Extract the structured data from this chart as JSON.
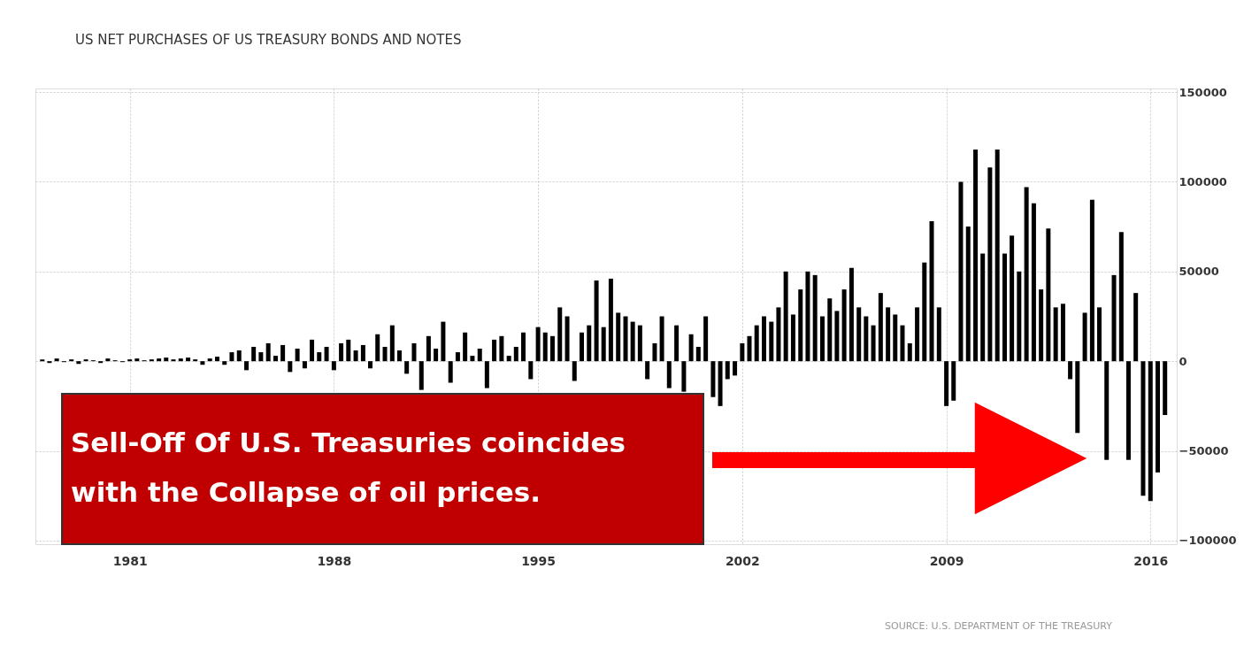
{
  "chart_data": {
    "type": "bar",
    "title": "US NET PURCHASES OF US TREASURY BONDS AND NOTES",
    "x": [
      "1978-01",
      "1978-04",
      "1978-07",
      "1978-10",
      "1979-01",
      "1979-04",
      "1979-07",
      "1979-10",
      "1980-01",
      "1980-04",
      "1980-07",
      "1980-10",
      "1981-01",
      "1981-04",
      "1981-07",
      "1981-10",
      "1982-01",
      "1982-04",
      "1982-07",
      "1982-10",
      "1983-01",
      "1983-04",
      "1983-07",
      "1983-10",
      "1984-01",
      "1984-04",
      "1984-07",
      "1984-10",
      "1985-01",
      "1985-04",
      "1985-07",
      "1985-10",
      "1986-01",
      "1986-04",
      "1986-07",
      "1986-10",
      "1987-01",
      "1987-04",
      "1987-07",
      "1987-10",
      "1988-01",
      "1988-04",
      "1988-07",
      "1988-10",
      "1989-01",
      "1989-04",
      "1989-07",
      "1989-10",
      "1990-01",
      "1990-04",
      "1990-07",
      "1990-10",
      "1991-01",
      "1991-04",
      "1991-07",
      "1991-10",
      "1992-01",
      "1992-04",
      "1992-07",
      "1992-10",
      "1993-01",
      "1993-04",
      "1993-07",
      "1993-10",
      "1994-01",
      "1994-04",
      "1994-07",
      "1994-10",
      "1995-01",
      "1995-04",
      "1995-07",
      "1995-10",
      "1996-01",
      "1996-04",
      "1996-07",
      "1996-10",
      "1997-01",
      "1997-04",
      "1997-07",
      "1997-10",
      "1998-01",
      "1998-04",
      "1998-07",
      "1998-10",
      "1999-01",
      "1999-04",
      "1999-07",
      "1999-10",
      "2000-01",
      "2000-04",
      "2000-07",
      "2000-10",
      "2001-01",
      "2001-04",
      "2001-07",
      "2001-10",
      "2002-01",
      "2002-04",
      "2002-07",
      "2002-10",
      "2003-01",
      "2003-04",
      "2003-07",
      "2003-10",
      "2004-01",
      "2004-04",
      "2004-07",
      "2004-10",
      "2005-01",
      "2005-04",
      "2005-07",
      "2005-10",
      "2006-01",
      "2006-04",
      "2006-07",
      "2006-10",
      "2007-01",
      "2007-04",
      "2007-07",
      "2007-10",
      "2008-01",
      "2008-04",
      "2008-07",
      "2008-10",
      "2009-01",
      "2009-04",
      "2009-07",
      "2009-10",
      "2010-01",
      "2010-04",
      "2010-07",
      "2010-10",
      "2011-01",
      "2011-04",
      "2011-07",
      "2011-10",
      "2012-01",
      "2012-04",
      "2012-07",
      "2012-10",
      "2013-01",
      "2013-04",
      "2013-07",
      "2013-10",
      "2014-01",
      "2014-04",
      "2014-07",
      "2014-10",
      "2015-01",
      "2015-04",
      "2015-07",
      "2015-10",
      "2016-01",
      "2016-04",
      "2016-07"
    ],
    "series": [
      {
        "color": "#000000",
        "values": [
          1000,
          -1000,
          1500,
          -500,
          1000,
          -1500,
          1000,
          500,
          -1000,
          1500,
          500,
          -500,
          1000,
          1500,
          500,
          1000,
          1500,
          2000,
          1000,
          1500,
          2000,
          1000,
          -2000,
          1500,
          2500,
          -2000,
          5000,
          6000,
          -5000,
          8000,
          5000,
          10000,
          3000,
          9000,
          -6000,
          7000,
          -4000,
          12000,
          5000,
          8000,
          -5000,
          10000,
          12000,
          6000,
          9000,
          -4000,
          15000,
          8000,
          20000,
          6000,
          -7000,
          10000,
          -16000,
          14000,
          7000,
          22000,
          -12000,
          5000,
          16000,
          3000,
          7000,
          -15000,
          12000,
          14000,
          3000,
          8000,
          16000,
          -10000,
          19000,
          16000,
          14000,
          30000,
          25000,
          -11000,
          16000,
          20000,
          45000,
          19000,
          46000,
          27000,
          25000,
          22000,
          20000,
          -10000,
          10000,
          25000,
          -15000,
          20000,
          -17000,
          15000,
          8000,
          25000,
          -20000,
          -25000,
          -10000,
          -8000,
          10000,
          14000,
          20000,
          25000,
          22000,
          30000,
          50000,
          26000,
          40000,
          50000,
          48000,
          25000,
          35000,
          28000,
          40000,
          52000,
          30000,
          25000,
          20000,
          38000,
          30000,
          26000,
          20000,
          10000,
          30000,
          55000,
          78000,
          30000,
          -25000,
          -22000,
          100000,
          75000,
          118000,
          60000,
          108000,
          118000,
          60000,
          70000,
          50000,
          97000,
          88000,
          40000,
          74000,
          30000,
          32000,
          -10000,
          -40000,
          27000,
          90000,
          30000,
          -55000,
          48000,
          72000,
          -55000,
          38000,
          -75000,
          -78000,
          -62000,
          -30000
        ]
      }
    ],
    "xlim": [
      "1977-12",
      "2016-10"
    ],
    "xticks": [
      "1981",
      "1988",
      "1995",
      "2002",
      "2009",
      "2016"
    ],
    "ylim": [
      -102000,
      152000
    ],
    "yticks": [
      -100000,
      -50000,
      0,
      50000,
      100000,
      150000
    ],
    "grid": true,
    "annotations": [
      "Sell-Off Of U.S. Treasuries coincides with the Collapse of oil prices.",
      "SOURCE: U.S. DEPARTMENT OF THE TREASURY"
    ]
  }
}
